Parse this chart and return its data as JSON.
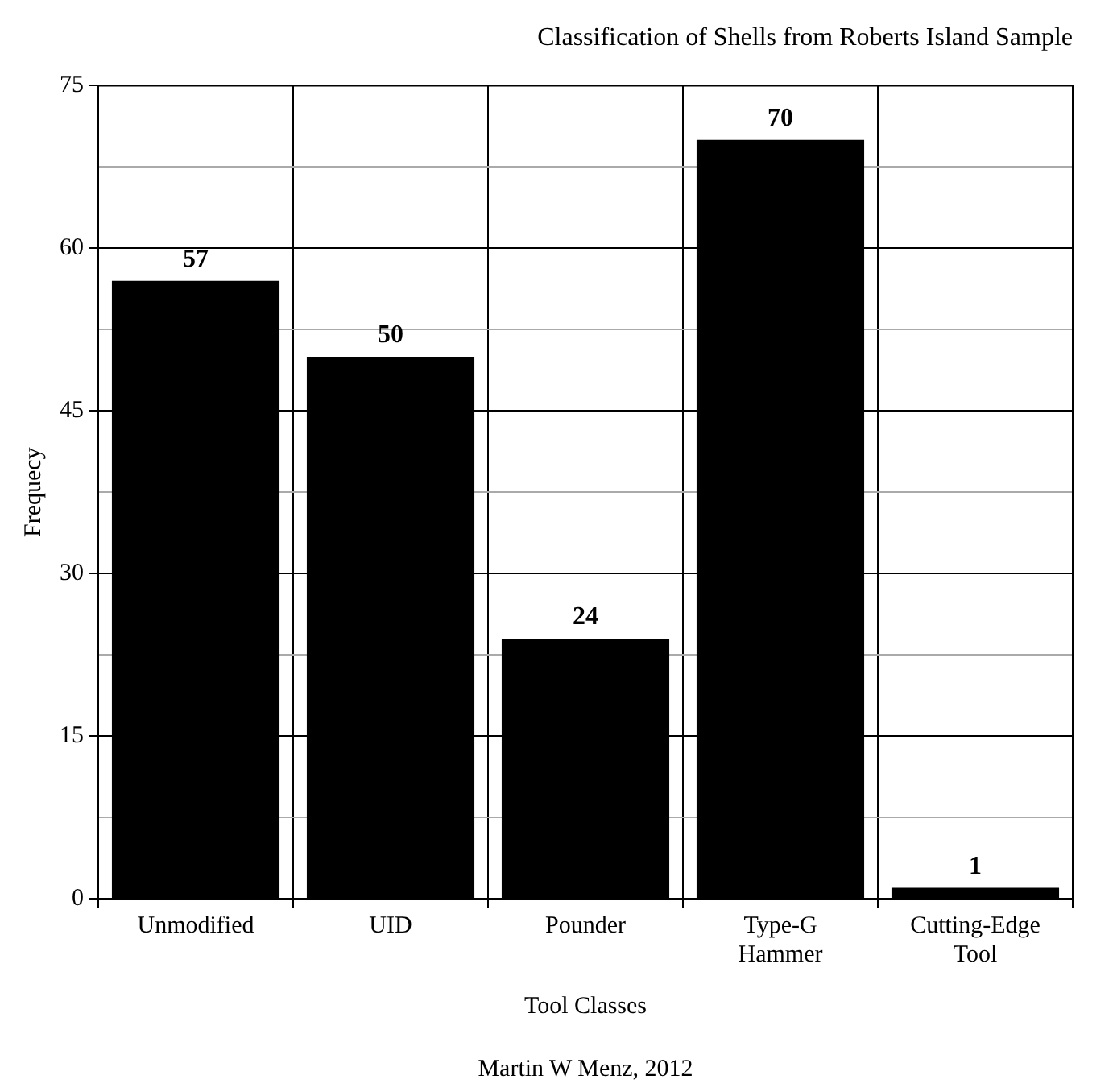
{
  "chart_data": {
    "type": "bar",
    "title": "Classification of Shells from Roberts Island Sample",
    "xlabel": "Tool Classes",
    "ylabel": "Frequecy",
    "categories": [
      "Unmodified",
      "UID",
      "Pounder",
      "Type-G Hammer",
      "Cutting-Edge Tool"
    ],
    "values": [
      57,
      50,
      24,
      70,
      1
    ],
    "color": "#000000",
    "ylim": [
      0,
      75
    ],
    "yticks": [
      0,
      {
        "value": 7.5,
        "label": null
      },
      15,
      {
        "value": 22.5,
        "label": null
      },
      30,
      {
        "value": 37.5,
        "label": null
      },
      45,
      {
        "value": 52.5,
        "label": null
      },
      60,
      {
        "value": 67.5,
        "label": null
      },
      75
    ],
    "grid": true,
    "data_labels": true,
    "annotations": [
      "Martin W Menz, 2012"
    ]
  }
}
